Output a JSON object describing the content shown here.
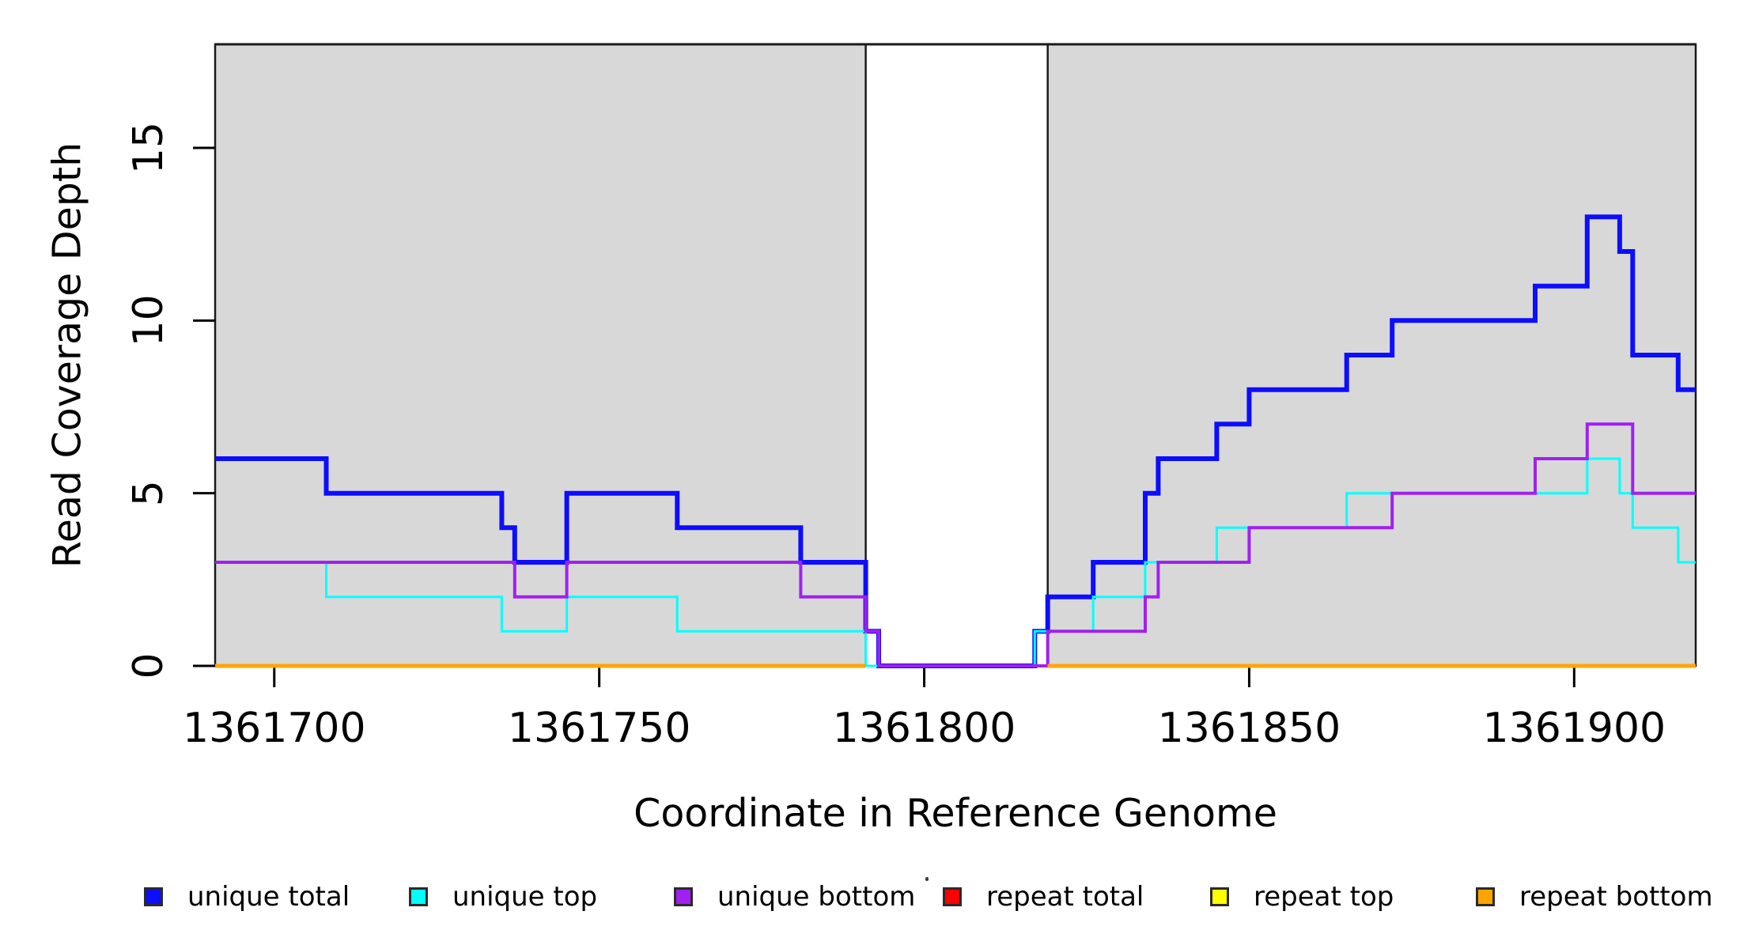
{
  "figure": {
    "background_color": "#ffffff",
    "panel_band_color": "#d8d8d8",
    "panel_border_color": "#1a1a1a"
  },
  "chart_data": {
    "type": "step",
    "title": "",
    "xlabel": "Coordinate in Reference Genome",
    "ylabel": "Read Coverage Depth",
    "xlim": [
      1361690.9,
      1361918.7
    ],
    "ylim": [
      0,
      18
    ],
    "grid": false,
    "x_ticks": [
      1361700,
      1361750,
      1361800,
      1361850,
      1361900
    ],
    "x_tick_labels": [
      "1361700",
      "1361750",
      "1361800",
      "1361850",
      "1361900"
    ],
    "y_ticks": [
      0,
      5,
      10,
      15
    ],
    "y_tick_labels": [
      "0",
      "5",
      "10",
      "15"
    ],
    "background_bands": [
      {
        "name": "shaded-region-left",
        "x_start": 1361690.9,
        "x_end": 1361791,
        "color": "#d8d8d8"
      },
      {
        "name": "shaded-region-right",
        "x_start": 1361819,
        "x_end": 1361918.7,
        "color": "#d8d8d8"
      }
    ],
    "series": [
      {
        "label": "unique total",
        "color": "#0d0dff",
        "line_width": 6,
        "kind": "step",
        "start_value": 6,
        "changes": [
          [
            1361708,
            5
          ],
          [
            1361735,
            4
          ],
          [
            1361737,
            3
          ],
          [
            1361745,
            5
          ],
          [
            1361762,
            4
          ],
          [
            1361781,
            3
          ],
          [
            1361791,
            1
          ],
          [
            1361793,
            0
          ],
          [
            1361817,
            1
          ],
          [
            1361819,
            2
          ],
          [
            1361826,
            3
          ],
          [
            1361834,
            5
          ],
          [
            1361836,
            6
          ],
          [
            1361845,
            7
          ],
          [
            1361850,
            8
          ],
          [
            1361865,
            9
          ],
          [
            1361872,
            10
          ],
          [
            1361894,
            11
          ],
          [
            1361902,
            13
          ],
          [
            1361907,
            12
          ],
          [
            1361909,
            9
          ],
          [
            1361916,
            8
          ]
        ]
      },
      {
        "label": "unique top",
        "color": "#00ffff",
        "line_width": 3,
        "kind": "step",
        "start_value": 3,
        "changes": [
          [
            1361708,
            2
          ],
          [
            1361735,
            1
          ],
          [
            1361745,
            2
          ],
          [
            1361762,
            1
          ],
          [
            1361791,
            0
          ],
          [
            1361817,
            1
          ],
          [
            1361826,
            2
          ],
          [
            1361834,
            3
          ],
          [
            1361845,
            4
          ],
          [
            1361865,
            5
          ],
          [
            1361902,
            6
          ],
          [
            1361907,
            5
          ],
          [
            1361909,
            4
          ],
          [
            1361916,
            3
          ]
        ]
      },
      {
        "label": "unique bottom",
        "color": "#a020f0",
        "line_width": 4,
        "kind": "step",
        "start_value": 3,
        "changes": [
          [
            1361737,
            2
          ],
          [
            1361745,
            3
          ],
          [
            1361781,
            2
          ],
          [
            1361791,
            1
          ],
          [
            1361793,
            0
          ],
          [
            1361819,
            1
          ],
          [
            1361834,
            2
          ],
          [
            1361836,
            3
          ],
          [
            1361850,
            4
          ],
          [
            1361872,
            5
          ],
          [
            1361894,
            6
          ],
          [
            1361902,
            7
          ],
          [
            1361909,
            5
          ]
        ]
      },
      {
        "label": "repeat total",
        "color": "#ff0000",
        "line_width": 3,
        "kind": "flat",
        "value": 0,
        "segments": [
          [
            1361690.9,
            1361791
          ],
          [
            1361819,
            1361918.7
          ]
        ]
      },
      {
        "label": "repeat top",
        "color": "#ffff00",
        "line_width": 3,
        "kind": "flat",
        "value": 0,
        "segments": [
          [
            1361690.9,
            1361791
          ],
          [
            1361819,
            1361918.7
          ]
        ]
      },
      {
        "label": "repeat bottom",
        "color": "#ffa500",
        "line_width": 5,
        "kind": "flat",
        "value": 0,
        "segments": [
          [
            1361690.9,
            1361791
          ],
          [
            1361819,
            1361918.7
          ]
        ]
      }
    ],
    "legend": {
      "position": "bottom",
      "items": [
        {
          "label": "unique total",
          "color": "#0d0dff"
        },
        {
          "label": "unique top",
          "color": "#00ffff"
        },
        {
          "label": "unique bottom",
          "color": "#a020f0"
        },
        {
          "label": "repeat total",
          "color": "#ff0000"
        },
        {
          "label": "repeat top",
          "color": "#ffff00"
        },
        {
          "label": "repeat bottom",
          "color": "#ffa500"
        }
      ]
    }
  }
}
